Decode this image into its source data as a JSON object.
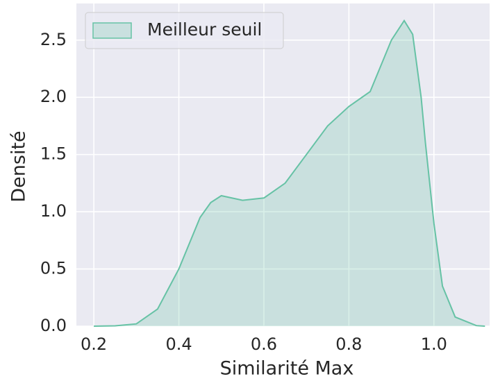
{
  "chart_data": {
    "type": "kde",
    "xlabel": "Similarité Max",
    "ylabel": "Densité",
    "xlim": [
      0.159,
      1.131
    ],
    "ylim": [
      0,
      2.82
    ],
    "xticks": [
      0.2,
      0.4,
      0.6,
      0.8,
      {
        "value": 1.0,
        "label": "1.0"
      }
    ],
    "yticks": [
      {
        "value": 0,
        "label": "0.0"
      },
      0.5,
      {
        "value": 1.0,
        "label": "1.0"
      },
      1.5,
      {
        "value": 2.0,
        "label": "2.0"
      },
      2.5
    ],
    "grid": true,
    "legend": "upper left",
    "series": [
      {
        "name": "Meilleur seuil",
        "color": "#66c2a5",
        "x": [
          0.2,
          0.25,
          0.3,
          0.35,
          0.4,
          0.45,
          0.475,
          0.5,
          0.55,
          0.6,
          0.65,
          0.7,
          0.75,
          0.8,
          0.85,
          0.9,
          0.93,
          0.95,
          0.97,
          0.98,
          1.0,
          1.02,
          1.05,
          1.1,
          1.12
        ],
        "values": [
          0,
          0.003,
          0.02,
          0.15,
          0.5,
          0.95,
          1.08,
          1.14,
          1.1,
          1.12,
          1.25,
          1.5,
          1.75,
          1.92,
          2.05,
          2.5,
          2.67,
          2.55,
          2.0,
          1.6,
          0.9,
          0.35,
          0.08,
          0.005,
          0
        ]
      }
    ]
  }
}
